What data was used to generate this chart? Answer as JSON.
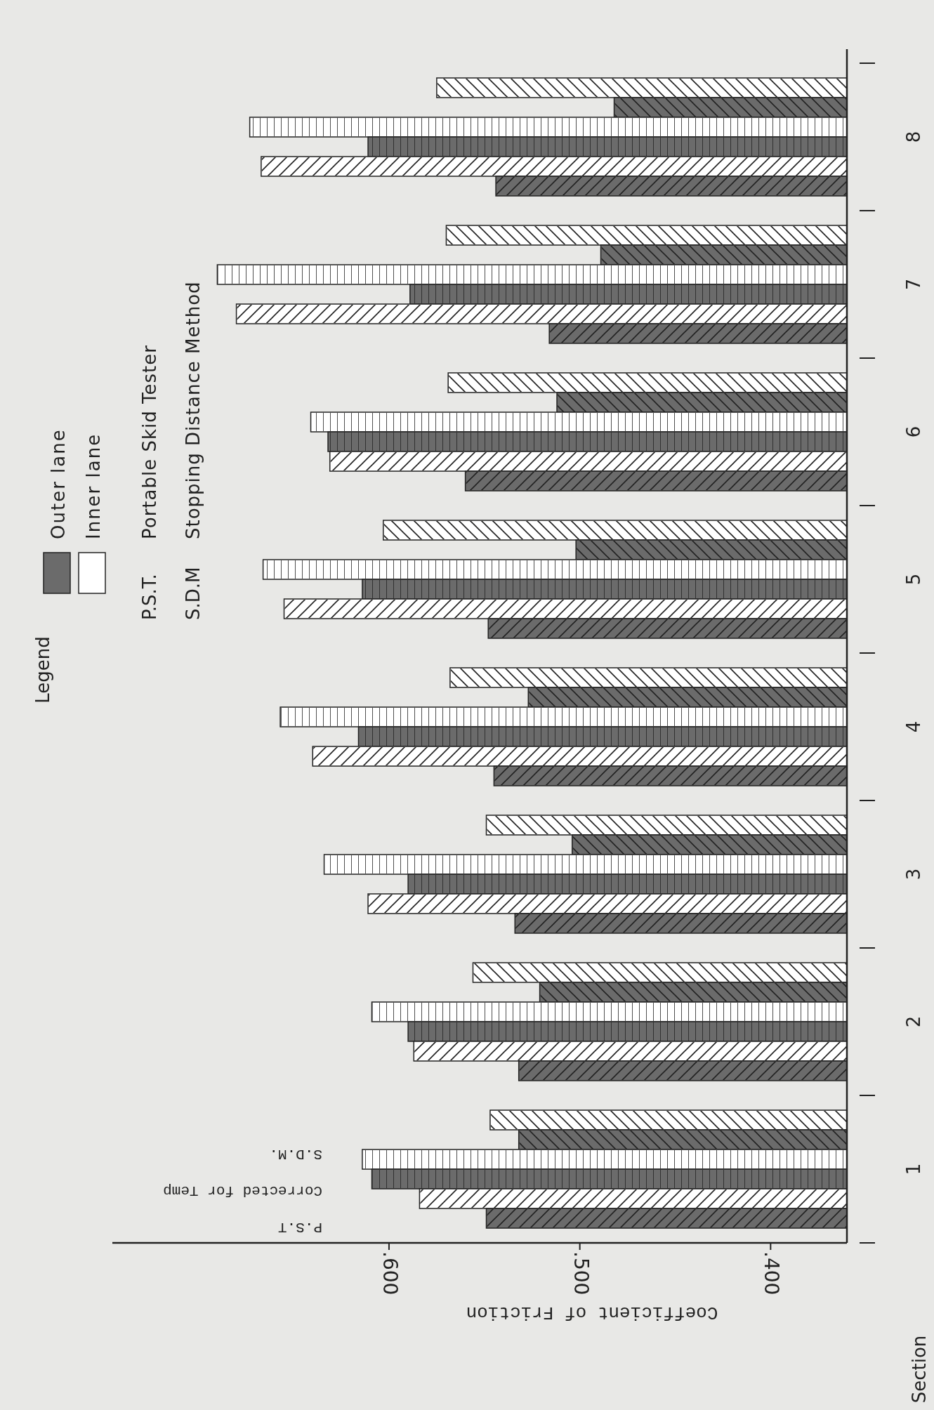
{
  "chart_data": {
    "type": "bar",
    "orientation": "horizontal",
    "xlabel": "Coefficient of Friction",
    "ylabel": "Section",
    "legend_title": "Legend",
    "categories": [
      "8",
      "7",
      "6",
      "5",
      "4",
      "3",
      "2",
      "1"
    ],
    "xlim": [
      0.745,
      0.36
    ],
    "xticks": [
      {
        "value": 0.6,
        "label": ".600"
      },
      {
        "value": 0.5,
        "label": ".500"
      },
      {
        "value": 0.4,
        "label": ".400"
      }
    ],
    "series": [
      {
        "color": "#ffffff",
        "values": [
          0.575,
          0.57,
          0.569,
          0.603,
          0.568,
          0.549,
          0.556,
          0.547
        ]
      },
      {
        "color": "#6b6b6b",
        "values": [
          0.482,
          0.489,
          0.512,
          0.502,
          0.527,
          0.504,
          0.521,
          0.532
        ]
      },
      {
        "color": "#ffffff",
        "values": [
          0.673,
          0.69,
          0.641,
          0.666,
          0.657,
          0.634,
          0.609,
          0.614
        ]
      },
      {
        "color": "#6b6b6b",
        "values": [
          0.611,
          0.589,
          0.632,
          0.614,
          0.616,
          0.59,
          0.59,
          0.609
        ]
      },
      {
        "color": "#ffffff",
        "values": [
          0.667,
          0.68,
          0.631,
          0.655,
          0.64,
          0.611,
          0.587,
          0.584
        ]
      },
      {
        "color": "#6b6b6b",
        "values": [
          0.544,
          0.516,
          0.56,
          0.548,
          0.545,
          0.534,
          0.532,
          0.549
        ]
      }
    ],
    "annotations": [
      "Outer lane",
      "Inner lane",
      "P.S.T.",
      "Portable Skid Tester",
      "S.D.M",
      "Stopping Distance Method",
      "P.S.T",
      "Corrected for Temp",
      "S.D.M."
    ]
  }
}
